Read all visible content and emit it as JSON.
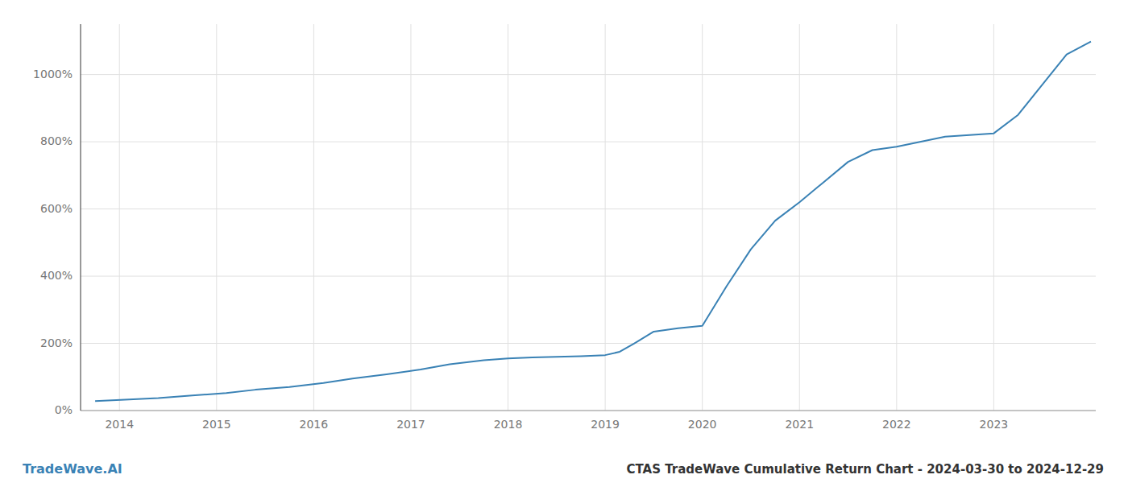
{
  "chart_data": {
    "type": "line",
    "title": "CTAS TradeWave Cumulative Return Chart - 2024-03-30 to 2024-12-29",
    "annotations": [
      "TradeWave.AI"
    ],
    "color": "#3a82b5",
    "grid": true,
    "x": [
      2013.75,
      2014.1,
      2014.4,
      2014.75,
      2015.1,
      2015.4,
      2015.75,
      2016.1,
      2016.4,
      2016.75,
      2017.1,
      2017.4,
      2017.75,
      2018.0,
      2018.25,
      2018.5,
      2018.75,
      2019.0,
      2019.15,
      2019.3,
      2019.5,
      2019.75,
      2020.0,
      2020.25,
      2020.5,
      2020.75,
      2021.0,
      2021.25,
      2021.5,
      2021.75,
      2022.0,
      2022.25,
      2022.5,
      2022.75,
      2023.0,
      2023.25,
      2023.5,
      2023.75,
      2024.0
    ],
    "values": [
      28,
      33,
      37,
      45,
      52,
      62,
      70,
      82,
      95,
      108,
      122,
      138,
      150,
      155,
      158,
      160,
      162,
      165,
      175,
      200,
      235,
      245,
      252,
      370,
      480,
      565,
      620,
      680,
      740,
      775,
      785,
      800,
      815,
      820,
      825,
      880,
      970,
      1060,
      1098
    ],
    "xlim": [
      2013.6,
      2024.05
    ],
    "xticks": [
      2014,
      2015,
      2016,
      2017,
      2018,
      2019,
      2020,
      2021,
      2022,
      2023
    ],
    "ylim": [
      0,
      1150
    ],
    "yticks": [
      {
        "value": 0,
        "label": "0%"
      },
      {
        "value": 200,
        "label": "200%"
      },
      {
        "value": 400,
        "label": "400%"
      },
      {
        "value": 600,
        "label": "600%"
      },
      {
        "value": 800,
        "label": "800%"
      },
      {
        "value": 1000,
        "label": "1000%"
      }
    ]
  }
}
